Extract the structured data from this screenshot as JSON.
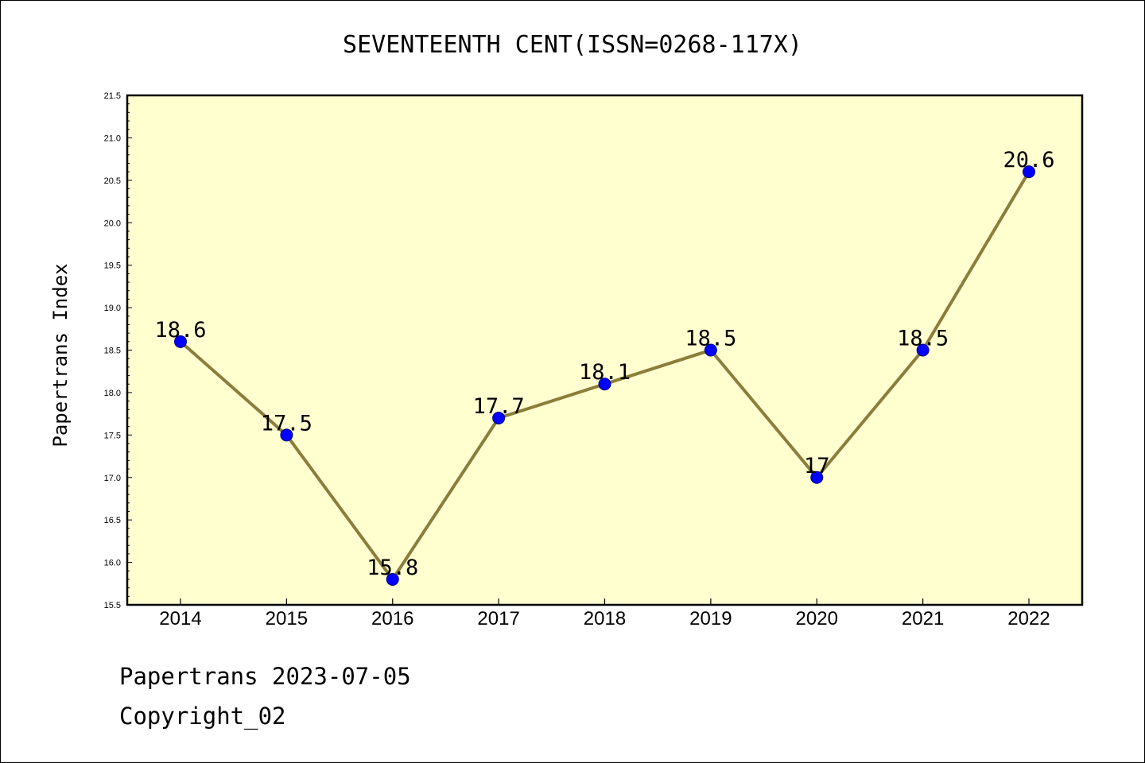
{
  "footer": {
    "line1": "Papertrans 2023-07-05",
    "line2": "Copyright_02"
  },
  "chart_data": {
    "type": "line",
    "title": "SEVENTEENTH CENT(ISSN=0268-117X)",
    "xlabel": "",
    "ylabel": "Papertrans Index",
    "categories": [
      "2014",
      "2015",
      "2016",
      "2017",
      "2018",
      "2019",
      "2020",
      "2021",
      "2022"
    ],
    "series": [
      {
        "values": [
          18.6,
          17.5,
          15.8,
          17.7,
          18.1,
          18.5,
          17.0,
          18.5,
          20.6
        ],
        "data_labels": [
          "18.6",
          "17.5",
          "15.8",
          "17.7",
          "18.1",
          "18.5",
          "17",
          "18.5",
          "20.6"
        ]
      }
    ],
    "ylim": [
      15.5,
      21.5
    ],
    "yticks": [
      "15.5",
      "16.0",
      "16.5",
      "17.0",
      "17.5",
      "18.0",
      "18.5",
      "19.0",
      "19.5",
      "20.0",
      "20.5",
      "21.0",
      "21.5"
    ],
    "grid": false,
    "legend": "none",
    "colors": {
      "plot_background": "#ffffd0",
      "line": "#8b7d3a",
      "marker": "#0000ff",
      "marker_edge": "#00008b"
    }
  }
}
